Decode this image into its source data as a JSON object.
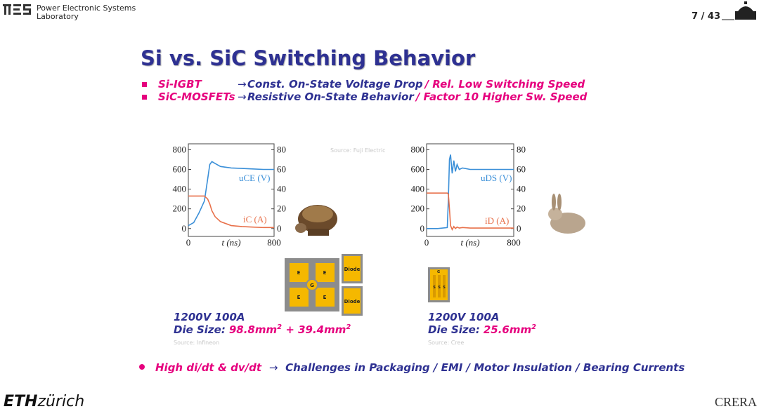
{
  "header": {
    "lab_line1": "Power Electronic Systems",
    "lab_line2": "Laboratory",
    "page": "7 / 43"
  },
  "title": "Si vs. SiC Switching Behavior",
  "bullets": [
    {
      "device": "Si-IGBT",
      "arrow": "→",
      "text_a": "Const. On-State Voltage Drop",
      "text_b": "/ Rel. Low Switching Speed"
    },
    {
      "device": "SiC-MOSFETs",
      "arrow": "→",
      "text_a": "Resistive On-State Behavior",
      "text_b": "/ Factor 10 Higher Sw. Speed"
    }
  ],
  "chart_data": [
    {
      "type": "line",
      "xlabel": "t (ns)",
      "source": "Source: Fuji Electric",
      "x": [
        0,
        50,
        100,
        150,
        180,
        200,
        220,
        250,
        300,
        400,
        500,
        600,
        700,
        800
      ],
      "xlim": [
        0,
        800
      ],
      "xticks": [
        0,
        800
      ],
      "ylim": [
        -80,
        860
      ],
      "yticks": [
        0,
        200,
        400,
        600,
        800
      ],
      "y2lim": [
        -8,
        86
      ],
      "y2ticks": [
        0,
        20,
        40,
        60,
        80
      ],
      "series": [
        {
          "name": "uCE (V)",
          "color": "#3a8fd8",
          "values": [
            30,
            60,
            160,
            280,
            500,
            650,
            680,
            660,
            630,
            615,
            610,
            605,
            600,
            600
          ]
        },
        {
          "name": "iC (A)",
          "color": "#e8704a",
          "axis": "y2",
          "values": [
            33,
            33,
            33,
            33,
            30,
            25,
            18,
            12,
            7,
            3,
            2,
            1.5,
            1,
            1
          ]
        }
      ]
    },
    {
      "type": "line",
      "xlabel": "t (ns)",
      "x": [
        0,
        100,
        190,
        200,
        210,
        220,
        235,
        250,
        265,
        280,
        300,
        330,
        400,
        500,
        600,
        800
      ],
      "xlim": [
        0,
        800
      ],
      "xticks": [
        0,
        800
      ],
      "ylim": [
        -80,
        860
      ],
      "yticks": [
        0,
        200,
        400,
        600,
        800
      ],
      "y2lim": [
        -8,
        86
      ],
      "y2ticks": [
        0,
        20,
        40,
        60,
        80
      ],
      "series": [
        {
          "name": "uDS (V)",
          "color": "#3a8fd8",
          "values": [
            0,
            0,
            10,
            300,
            700,
            750,
            560,
            690,
            580,
            650,
            600,
            615,
            600,
            600,
            600,
            600
          ]
        },
        {
          "name": "iD (A)",
          "color": "#e8704a",
          "axis": "y2",
          "values": [
            36,
            36,
            36,
            35,
            20,
            3,
            -1,
            2,
            0,
            1.5,
            0.5,
            1,
            0.5,
            0.5,
            0.5,
            0.5
          ]
        }
      ]
    }
  ],
  "chips": {
    "igbt": [
      "E",
      "E",
      "G",
      "E",
      "E"
    ],
    "diodes": [
      "Diode",
      "Diode"
    ],
    "mosfet": [
      "G",
      "S",
      "S",
      "S"
    ]
  },
  "specs": [
    {
      "rating": "1200V  100A",
      "die_label": "Die Size:",
      "die_a": "98.8mm",
      "sup_a": "2",
      "die_b": " + 39.4mm",
      "sup_b": "2",
      "source": "Source: Infineon"
    },
    {
      "rating": "1200V  100A",
      "die_label": "Die Size:",
      "die_a": "25.6mm",
      "sup_a": "2",
      "source": "Source: Cree"
    }
  ],
  "bottom": {
    "lead": "High  di/dt  & dv/dt",
    "arrow": "→",
    "text": "Challenges in Packaging / EMI / Motor Insulation / Bearing Currents"
  },
  "footer": {
    "eth": "ETH",
    "zurich": "zürich",
    "crera": "CRERA"
  }
}
